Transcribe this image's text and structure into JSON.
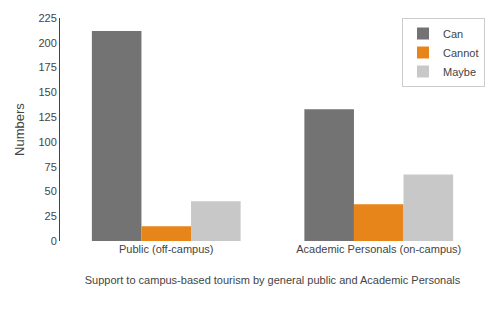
{
  "chart_data": {
    "type": "bar",
    "categories": [
      "Public (off-campus)",
      "Academic Personals (on-campus)"
    ],
    "series": [
      {
        "name": "Can",
        "color": "#737373",
        "values": [
          212,
          133
        ]
      },
      {
        "name": "Cannot",
        "color": "#E8851A",
        "values": [
          15,
          37
        ]
      },
      {
        "name": "Maybe",
        "color": "#C8C8C8",
        "values": [
          40,
          67
        ]
      }
    ],
    "xlabel": "Support to campus-based tourism by general public and Academic Personals",
    "ylabel": "Numbers",
    "ylim": [
      0,
      225
    ],
    "yticks": [
      0,
      25,
      50,
      75,
      100,
      125,
      150,
      175,
      200,
      225
    ],
    "grid": false,
    "legend": "upper right"
  }
}
